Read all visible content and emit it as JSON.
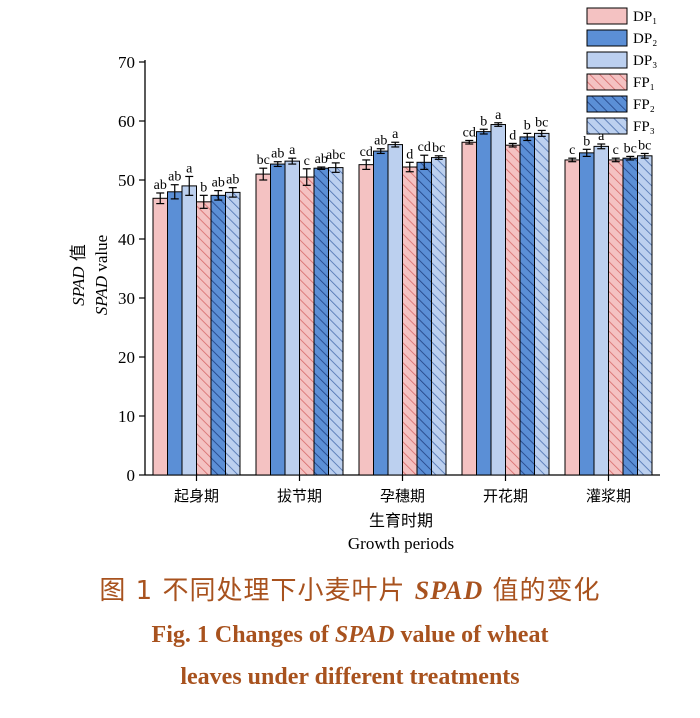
{
  "chart_data": {
    "type": "bar",
    "categories": [
      "起身期",
      "拔节期",
      "孕穗期",
      "开花期",
      "灌浆期"
    ],
    "ylabel_cn_italic": "SPAD",
    "ylabel_cn_rest": " 值",
    "ylabel_en_italic": "SPAD",
    "ylabel_en_rest": " value",
    "xlabel_cn": "生育时期",
    "xlabel_en": "Growth periods",
    "ylim": [
      0,
      70
    ],
    "yticks": [
      0,
      10,
      20,
      30,
      40,
      50,
      60,
      70
    ],
    "grid": false,
    "legend_position": "top-right",
    "series": [
      {
        "name": "DP₁",
        "values": [
          46.9,
          51.0,
          52.6,
          56.4,
          53.4
        ],
        "errors": [
          0.9,
          1.0,
          0.8,
          0.3,
          0.3
        ],
        "letters": [
          "ab",
          "bc",
          "cd",
          "cd",
          "c"
        ],
        "color": "#f4c2c2",
        "hatch": false
      },
      {
        "name": "DP₂",
        "values": [
          48.0,
          52.7,
          54.9,
          58.2,
          54.6
        ],
        "errors": [
          1.2,
          0.4,
          0.4,
          0.4,
          0.6
        ],
        "letters": [
          "ab",
          "ab",
          "ab",
          "b",
          "b"
        ],
        "color": "#5b8fd6",
        "hatch": false
      },
      {
        "name": "DP₃",
        "values": [
          49.0,
          53.2,
          56.0,
          59.4,
          55.7
        ],
        "errors": [
          1.6,
          0.5,
          0.4,
          0.3,
          0.4
        ],
        "letters": [
          "a",
          "a",
          "a",
          "a",
          "a"
        ],
        "color": "#bcd0ef",
        "hatch": false
      },
      {
        "name": "FP₁",
        "values": [
          46.3,
          50.5,
          52.2,
          55.9,
          53.4
        ],
        "errors": [
          1.1,
          1.4,
          0.8,
          0.3,
          0.3
        ],
        "letters": [
          "b",
          "c",
          "d",
          "d",
          "c"
        ],
        "color": "#f4c2c2",
        "hatch": true
      },
      {
        "name": "FP₂",
        "values": [
          47.4,
          52.0,
          53.0,
          57.3,
          53.7
        ],
        "errors": [
          0.8,
          0.2,
          1.2,
          0.6,
          0.3
        ],
        "letters": [
          "ab",
          "ab",
          "cd",
          "b",
          "bc"
        ],
        "color": "#5b8fd6",
        "hatch": true
      },
      {
        "name": "FP₃",
        "values": [
          47.9,
          52.1,
          53.8,
          57.9,
          54.1
        ],
        "errors": [
          0.8,
          0.8,
          0.3,
          0.5,
          0.4
        ],
        "letters": [
          "ab",
          "abc",
          "bc",
          "bc",
          "bc"
        ],
        "color": "#bcd0ef",
        "hatch": true
      }
    ]
  },
  "caption": {
    "cn_prefix": "图 1    不同处理下小麦叶片 ",
    "cn_italic": "SPAD",
    "cn_suffix": " 值的变化",
    "en_line1_prefix": "Fig. 1    Changes of ",
    "en_line1_italic": "SPAD",
    "en_line1_suffix": " value of wheat",
    "en_line2": "leaves under different treatments"
  },
  "colors": {
    "caption": "#a8521e",
    "axis": "#000000"
  }
}
